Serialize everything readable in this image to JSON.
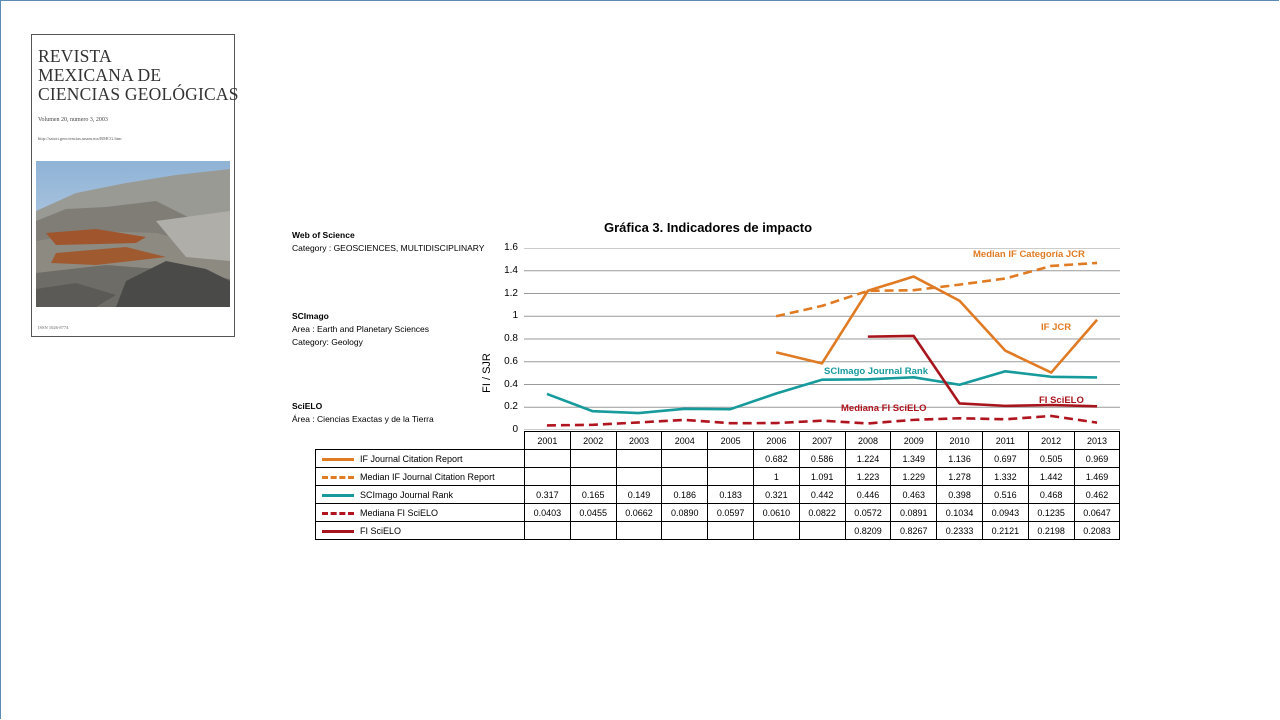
{
  "cover": {
    "title_lines": [
      "REVISTA",
      "MEXICANA DE",
      "CIENCIAS GEOLÓGICAS"
    ],
    "volume": "Volumen 20, numero 3, 2003",
    "url": "http://satori.geociencias.unam.mx/RMCG.htm",
    "issn": "ISSN 1026-8774"
  },
  "sidebar": {
    "wos_title": "Web of Science",
    "wos_category": "Category : GEOSCIENCES, MULTIDISCIPLINARY",
    "scimago_title": "SCImago",
    "scimago_area": "Area :  Earth and Planetary Sciences",
    "scimago_category": "Category:  Geology",
    "scielo_title": "SciELO",
    "scielo_area": "Área : Ciencias Exactas y de la Tierra"
  },
  "chart_data": {
    "type": "line",
    "title": "Gráfica 3. Indicadores de impacto",
    "ylabel": "FI / SJR",
    "ylim": [
      0,
      1.6
    ],
    "yticks": [
      "0",
      "0.2",
      "0.4",
      "0.6",
      "0.8",
      "1",
      "1.2",
      "1.4",
      "1.6"
    ],
    "grid": true,
    "categories": [
      "2001",
      "2002",
      "2003",
      "2004",
      "2005",
      "2006",
      "2007",
      "2008",
      "2009",
      "2010",
      "2011",
      "2012",
      "2013"
    ],
    "series": [
      {
        "name": "IF Journal Citation Report",
        "chart_label": "IF JCR",
        "color": "#e07b24",
        "dash": false,
        "values": [
          null,
          null,
          null,
          null,
          null,
          0.682,
          0.586,
          1.224,
          1.349,
          1.136,
          0.697,
          0.505,
          0.969
        ],
        "labels": [
          "",
          "",
          "",
          "",
          "",
          "0.682",
          "0.586",
          "1.224",
          "1.349",
          "1.136",
          "0.697",
          "0.505",
          "0.969"
        ]
      },
      {
        "name": "Median IF Journal Citation Report",
        "chart_label": "Median IF Categoría JCR",
        "color": "#e07b24",
        "dash": true,
        "values": [
          null,
          null,
          null,
          null,
          null,
          1,
          1.091,
          1.223,
          1.229,
          1.278,
          1.332,
          1.442,
          1.469
        ],
        "labels": [
          "",
          "",
          "",
          "",
          "",
          "1",
          "1.091",
          "1.223",
          "1.229",
          "1.278",
          "1.332",
          "1.442",
          "1.469"
        ]
      },
      {
        "name": "SCImago Journal Rank",
        "chart_label": "SCImago Journal Rank",
        "color": "#179a9c",
        "dash": false,
        "values": [
          0.317,
          0.165,
          0.149,
          0.186,
          0.183,
          0.321,
          0.442,
          0.446,
          0.463,
          0.398,
          0.516,
          0.468,
          0.462
        ],
        "labels": [
          "0.317",
          "0.165",
          "0.149",
          "0.186",
          "0.183",
          "0.321",
          "0.442",
          "0.446",
          "0.463",
          "0.398",
          "0.516",
          "0.468",
          "0.462"
        ]
      },
      {
        "name": "Mediana FI SciELO",
        "chart_label": "Mediana FI SciELO",
        "color": "#b0141e",
        "dash": true,
        "values": [
          0.0403,
          0.0455,
          0.0662,
          0.089,
          0.0597,
          0.061,
          0.0822,
          0.0572,
          0.0891,
          0.1034,
          0.0943,
          0.1235,
          0.0647
        ],
        "labels": [
          "0.0403",
          "0.0455",
          "0.0662",
          "0.0890",
          "0.0597",
          "0.0610",
          "0.0822",
          "0.0572",
          "0.0891",
          "0.1034",
          "0.0943",
          "0.1235",
          "0.0647"
        ]
      },
      {
        "name": "FI SciELO",
        "chart_label": "FI SciELO",
        "color": "#a8141c",
        "dash": false,
        "values": [
          null,
          null,
          null,
          null,
          null,
          null,
          null,
          0.8209,
          0.8267,
          0.2333,
          0.2121,
          0.2198,
          0.2083
        ],
        "labels": [
          "",
          "",
          "",
          "",
          "",
          "",
          "",
          "0.8209",
          "0.8267",
          "0.2333",
          "0.2121",
          "0.2198",
          "0.2083"
        ]
      }
    ]
  }
}
